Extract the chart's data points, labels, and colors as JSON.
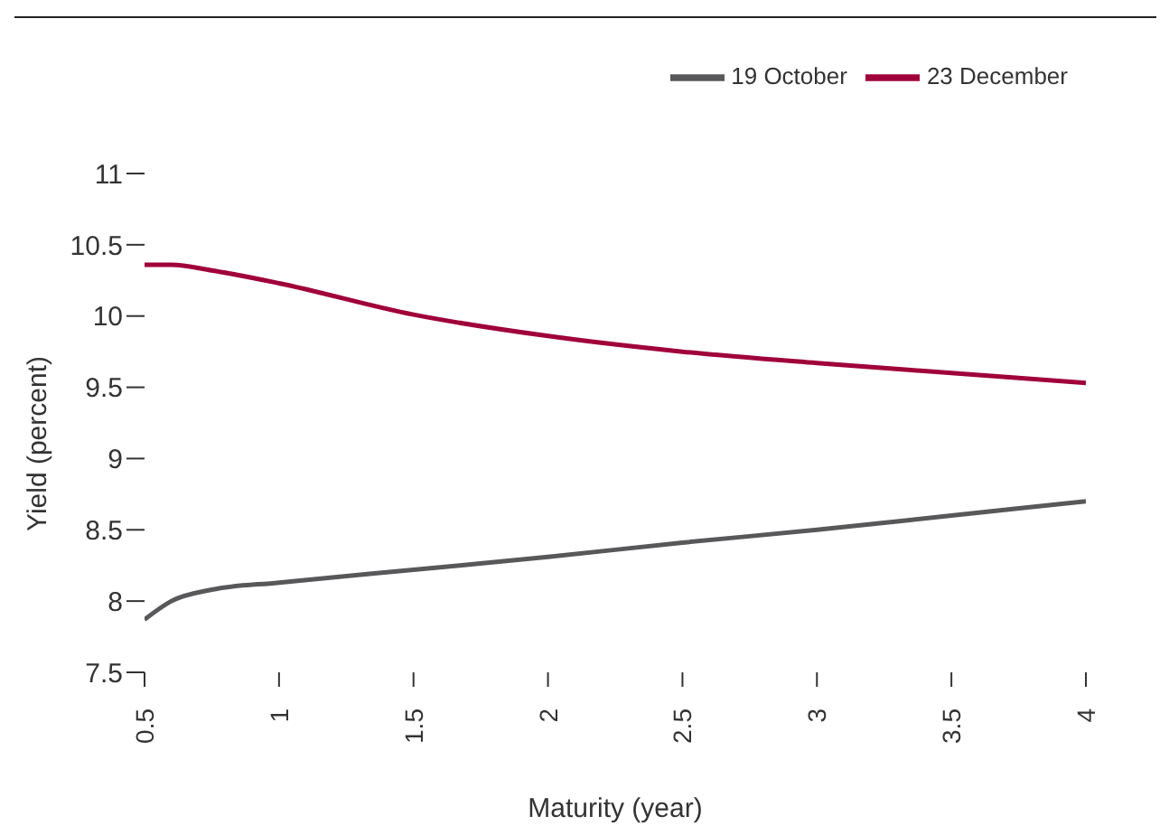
{
  "chart_data": {
    "type": "line",
    "xlabel": "Maturity (year)",
    "ylabel": "Yield (percent)",
    "x": [
      0.5,
      0.6,
      0.75,
      1,
      1.5,
      2,
      2.5,
      3,
      3.5,
      4
    ],
    "series": [
      {
        "name": "19 October",
        "color": "#58585a",
        "values": [
          7.87,
          8.0,
          8.08,
          8.13,
          8.22,
          8.31,
          8.41,
          8.5,
          8.6,
          8.7
        ]
      },
      {
        "name": "23 December",
        "color": "#a0003a",
        "values": [
          10.36,
          10.36,
          10.32,
          10.23,
          10.01,
          9.86,
          9.75,
          9.67,
          9.6,
          9.53
        ]
      }
    ],
    "xlim": [
      0.5,
      4
    ],
    "xticks": [
      0.5,
      1,
      1.5,
      2,
      2.5,
      3,
      3.5,
      4
    ],
    "ylim": [
      7.5,
      11
    ],
    "yticks": [
      7.5,
      8,
      8.5,
      9,
      9.5,
      10,
      10.5,
      11
    ],
    "grid": false,
    "legend": "top right",
    "marker": "none",
    "line_style": "solid"
  }
}
